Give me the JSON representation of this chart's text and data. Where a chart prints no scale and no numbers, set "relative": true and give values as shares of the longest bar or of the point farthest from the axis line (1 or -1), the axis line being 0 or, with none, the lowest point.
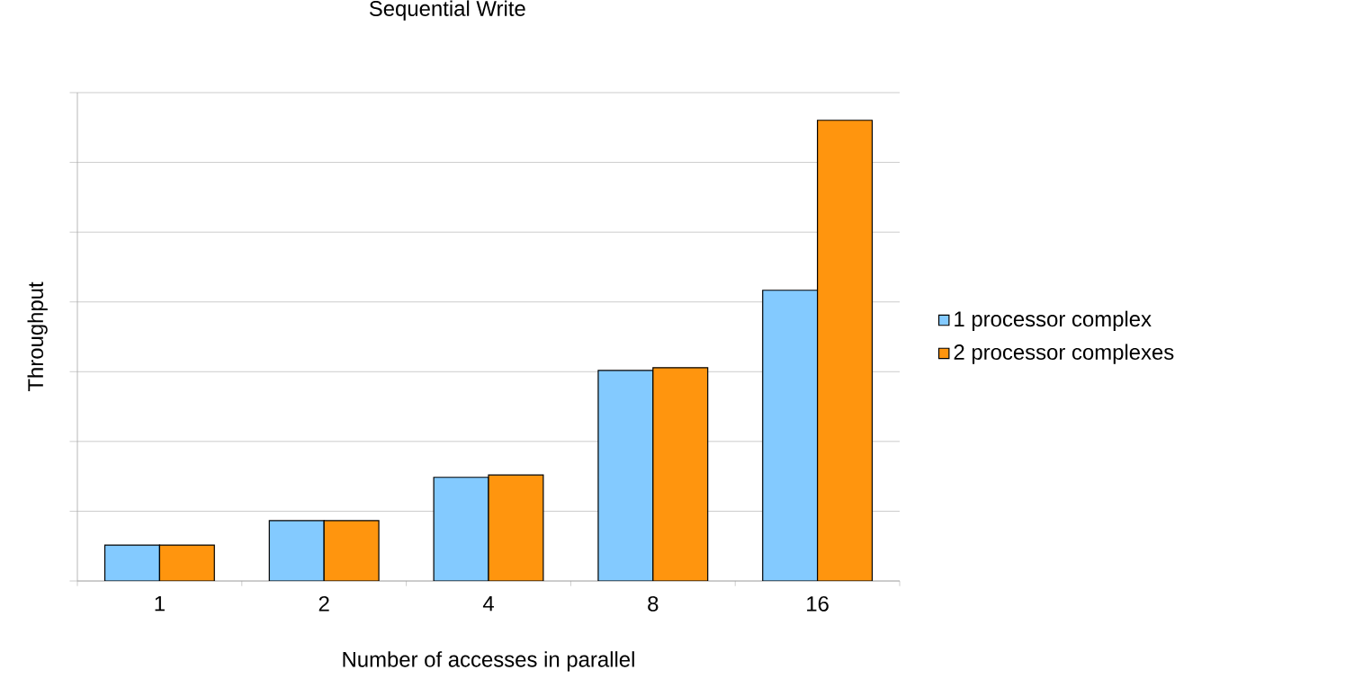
{
  "chart_data": {
    "type": "bar",
    "title": "Sequential Write",
    "xlabel": "Number of accesses in parallel",
    "ylabel": "Throughput",
    "categories": [
      "1",
      "2",
      "4",
      "8",
      "16"
    ],
    "series": [
      {
        "name": "1 processor complex",
        "color": "#83caff",
        "values": [
          0.078,
          0.131,
          0.225,
          0.457,
          0.631
        ]
      },
      {
        "name": "2 processor complexes",
        "color": "#ff950e",
        "values": [
          0.078,
          0.131,
          0.23,
          0.463,
          1
        ]
      }
    ],
    "relative": true,
    "grid": "y",
    "legend": "right"
  }
}
